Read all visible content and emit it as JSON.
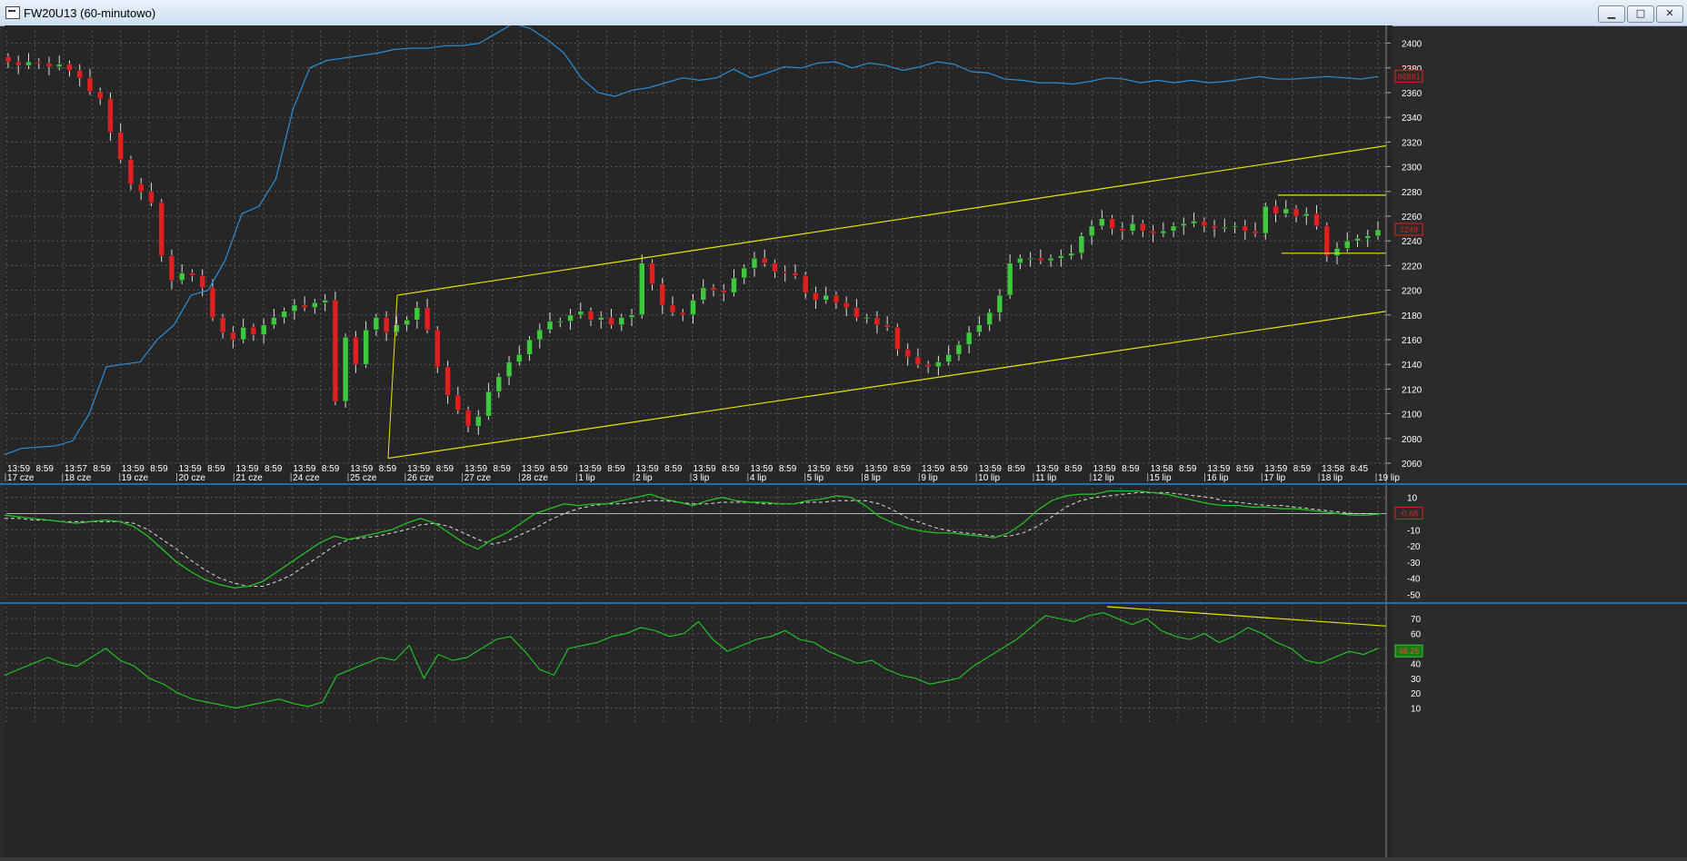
{
  "window": {
    "title": "FW20U13 (60-minutowo)",
    "buttons": {
      "minimize": "▁",
      "maximize": "□",
      "close": "✕"
    },
    "colors": {
      "background": "#262626",
      "grid": "#5a5a5a",
      "separator": "#1f6fb0",
      "up": "#3ec83e",
      "down": "#e02020",
      "trend": "#e6e600",
      "oi": "#2a8fd6",
      "osc": "#22cc22",
      "signal": "#dddddd",
      "axis_text": "#ffffff"
    }
  },
  "chart_data": [
    {
      "type": "candlestick",
      "panel": "price",
      "y_ticks": [
        "2400",
        "2380",
        "2360",
        "2340",
        "2320",
        "2300",
        "2280",
        "2260",
        "2240",
        "2220",
        "2200",
        "2180",
        "2160",
        "2140",
        "2120",
        "2100",
        "2080",
        "2060"
      ],
      "ylim": [
        2060,
        2410
      ],
      "last_price_label": "2249",
      "oi_label": "86881",
      "time_labels": [
        "13:59",
        "8:59",
        "13:57",
        "8:59",
        "13:59",
        "8:59",
        "13:59",
        "8:59",
        "13:59",
        "8:59",
        "13:59",
        "8:59",
        "13:59",
        "8:59",
        "13:59",
        "8:59",
        "13:59",
        "8:59",
        "13:59",
        "8:59",
        "13:59",
        "8:59",
        "13:59",
        "8:59",
        "13:59",
        "8:59",
        "13:59",
        "8:59",
        "13:59",
        "8:59",
        "13:59",
        "8:59",
        "13:59",
        "8:59",
        "13:59",
        "8:59",
        "13:59",
        "8:59",
        "13:59",
        "8:59",
        "13:58",
        "8:59",
        "13:59",
        "8:59",
        "13:59",
        "8:59",
        "13:58",
        "8:45"
      ],
      "date_labels": [
        "17 cze",
        "18 cze",
        "19 cze",
        "20 cze",
        "21 cze",
        "24 cze",
        "25 cze",
        "26 cze",
        "27 cze",
        "28 cze",
        "1 lip",
        "2 lip",
        "3 lip",
        "4 lip",
        "5 lip",
        "8 lip",
        "9 lip",
        "10 lip",
        "11 lip",
        "12 lip",
        "15 lip",
        "16 lip",
        "17 lip",
        "18 lip",
        "19 lip"
      ],
      "close_path": [
        2385,
        2382,
        2385,
        2384,
        2381,
        2383,
        2378,
        2372,
        2361,
        2355,
        2328,
        2306,
        2286,
        2280,
        2271,
        2228,
        2208,
        2214,
        2212,
        2202,
        2178,
        2166,
        2160,
        2170,
        2164,
        2172,
        2178,
        2183,
        2188,
        2186,
        2190,
        2192,
        2110,
        2162,
        2140,
        2168,
        2178,
        2166,
        2172,
        2176,
        2186,
        2168,
        2138,
        2115,
        2103,
        2090,
        2098,
        2118,
        2130,
        2142,
        2148,
        2160,
        2168,
        2175,
        2175,
        2180,
        2183,
        2176,
        2178,
        2172,
        2178,
        2180,
        2222,
        2205,
        2188,
        2182,
        2180,
        2192,
        2202,
        2200,
        2198,
        2210,
        2218,
        2226,
        2222,
        2215,
        2214,
        2212,
        2198,
        2192,
        2196,
        2190,
        2186,
        2178,
        2178,
        2172,
        2170,
        2152,
        2146,
        2140,
        2138,
        2142,
        2148,
        2156,
        2166,
        2172,
        2182,
        2196,
        2222,
        2226,
        2226,
        2224,
        2226,
        2228,
        2230,
        2244,
        2252,
        2258,
        2250,
        2248,
        2254,
        2248,
        2246,
        2248,
        2252,
        2254,
        2256,
        2252,
        2250,
        2251,
        2252,
        2248,
        2246,
        2268,
        2262,
        2266,
        2260,
        2262,
        2252,
        2228,
        2234,
        2240,
        2242,
        2244,
        2249
      ],
      "open_interest_path": [
        2067,
        2072,
        2073,
        2074,
        2078,
        2100,
        2138,
        2140,
        2142,
        2160,
        2172,
        2196,
        2200,
        2224,
        2262,
        2268,
        2290,
        2346,
        2380,
        2386,
        2388,
        2390,
        2392,
        2395,
        2396,
        2396,
        2398,
        2398,
        2400,
        2408,
        2416,
        2412,
        2403,
        2392,
        2372,
        2360,
        2357,
        2362,
        2364,
        2368,
        2372,
        2370,
        2372,
        2379,
        2372,
        2376,
        2381,
        2380,
        2384,
        2385,
        2380,
        2384,
        2382,
        2378,
        2381,
        2385,
        2383,
        2377,
        2376,
        2371,
        2370,
        2368,
        2368,
        2367,
        2369,
        2372,
        2371,
        2368,
        2370,
        2368,
        2370,
        2368,
        2369,
        2371,
        2373,
        2371,
        2371,
        2372,
        2373,
        2372,
        2371,
        2373
      ],
      "upper_channel": [
        [
          2060,
          2196
        ],
        [
          2320,
          2317
        ]
      ],
      "lower_channel": [
        [
          2060,
          2064
        ],
        [
          2183,
          2183
        ]
      ],
      "resistance": 2277,
      "support": 2230
    },
    {
      "type": "line",
      "panel": "oscillator",
      "y_ticks": [
        "10",
        "0",
        "-10",
        "-20",
        "-30",
        "-40",
        "-50"
      ],
      "ylim": [
        -52,
        16
      ],
      "current_label": "-0.68",
      "series": [
        {
          "values": [
            -1,
            -2,
            -3,
            -4,
            -5,
            -6,
            -5,
            -4,
            -5,
            -8,
            -14,
            -22,
            -30,
            -36,
            -41,
            -44,
            -46,
            -45,
            -42,
            -36,
            -30,
            -24,
            -18,
            -14,
            -16,
            -14,
            -12,
            -10,
            -6,
            -3,
            -6,
            -12,
            -18,
            -22,
            -16,
            -12,
            -6,
            0,
            3,
            6,
            5,
            6,
            6,
            8,
            10,
            12,
            9,
            7,
            5,
            8,
            10,
            8,
            7,
            7,
            6,
            6,
            8,
            9,
            11,
            10,
            5,
            -2,
            -6,
            -9,
            -11,
            -12,
            -12,
            -13,
            -14,
            -15,
            -12,
            -6,
            2,
            8,
            11,
            12,
            12,
            14,
            14,
            14,
            13,
            12,
            10,
            8,
            6,
            5,
            5,
            4,
            4,
            3,
            3,
            2,
            1,
            0,
            -1,
            -1,
            0
          ]
        },
        {
          "values": [
            -3,
            -3,
            -4,
            -4,
            -5,
            -5,
            -5,
            -5,
            -5,
            -6,
            -10,
            -16,
            -22,
            -29,
            -35,
            -40,
            -43,
            -45,
            -45,
            -42,
            -38,
            -32,
            -26,
            -20,
            -16,
            -15,
            -14,
            -12,
            -10,
            -7,
            -6,
            -8,
            -12,
            -16,
            -19,
            -17,
            -13,
            -9,
            -4,
            0,
            3,
            5,
            6,
            6,
            7,
            8,
            8,
            7,
            6,
            6,
            7,
            7,
            7,
            6,
            6,
            6,
            7,
            7,
            8,
            8,
            8,
            6,
            2,
            -3,
            -6,
            -9,
            -11,
            -12,
            -13,
            -14,
            -14,
            -12,
            -8,
            -2,
            4,
            8,
            10,
            11,
            12,
            13,
            13,
            13,
            12,
            11,
            10,
            8,
            7,
            6,
            5,
            5,
            4,
            3,
            2,
            1,
            0,
            0,
            0
          ]
        }
      ]
    },
    {
      "type": "line",
      "panel": "rsi",
      "y_ticks": [
        "70",
        "60",
        "50",
        "40",
        "30",
        "20",
        "10"
      ],
      "ylim": [
        0,
        78
      ],
      "current_label": "48.25",
      "series": [
        {
          "values": [
            32,
            36,
            40,
            44,
            40,
            38,
            44,
            50,
            42,
            38,
            30,
            26,
            20,
            16,
            14,
            12,
            10,
            12,
            14,
            16,
            13,
            11,
            14,
            32,
            36,
            40,
            44,
            42,
            52,
            30,
            46,
            42,
            44,
            50,
            56,
            58,
            48,
            36,
            32,
            50,
            52,
            54,
            58,
            60,
            64,
            62,
            58,
            60,
            68,
            56,
            48,
            52,
            56,
            58,
            62,
            56,
            54,
            48,
            44,
            40,
            42,
            36,
            32,
            30,
            26,
            28,
            30,
            38,
            44,
            50,
            56,
            64,
            72,
            70,
            68,
            72,
            74,
            70,
            66,
            70,
            62,
            58,
            56,
            60,
            54,
            58,
            64,
            60,
            54,
            50,
            42,
            40,
            44,
            48,
            46,
            50
          ]
        }
      ],
      "divergence_line": [
        [
          78,
          62
        ],
        [
          65,
          56
        ]
      ]
    }
  ]
}
